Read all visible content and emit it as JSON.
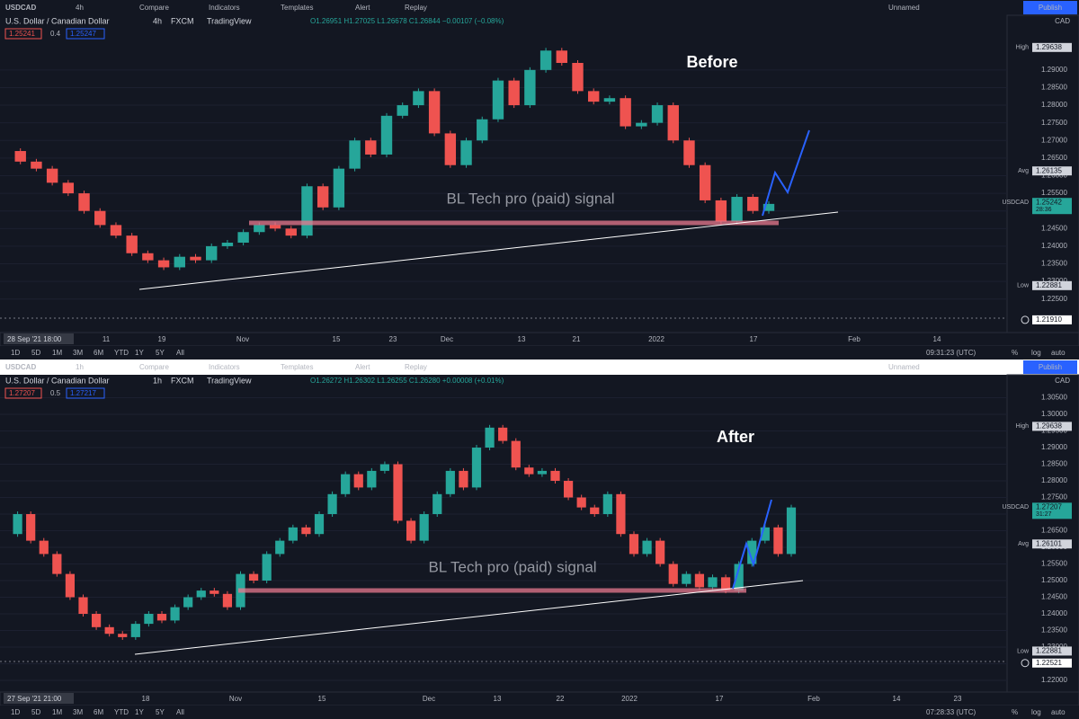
{
  "panels": [
    {
      "toolbar": {
        "symbol": "USDCAD",
        "interval": "4h",
        "buttons": [
          "Compare",
          "Indicators",
          "Templates",
          "Alert",
          "Replay"
        ],
        "layout": "Unnamed",
        "publish": "Publish"
      },
      "legend": {
        "title": "U.S. Dollar / Canadian Dollar",
        "interval": "4h",
        "broker": "FXCM",
        "source": "TradingView",
        "ohlc": "O1.26951 H1.27025 L1.26678 C1.26844 −0.00107 (−0.08%)",
        "bid": "1.25241",
        "spread": "0.4",
        "ask": "1.25247"
      },
      "heading": "Before",
      "signal": "BL Tech pro (paid) signal",
      "currency": "CAD",
      "ylim": [
        1.2155,
        1.3022
      ],
      "yticks": [
        {
          "value": 1.225,
          "label": "1.22500"
        },
        {
          "value": 1.23,
          "label": "1.23000"
        },
        {
          "value": 1.235,
          "label": "1.23500"
        },
        {
          "value": 1.24,
          "label": "1.24000"
        },
        {
          "value": 1.245,
          "label": "1.24500"
        },
        {
          "value": 1.25,
          "label": "1.25000"
        },
        {
          "value": 1.255,
          "label": "1.25500"
        },
        {
          "value": 1.26,
          "label": "1.26000"
        },
        {
          "value": 1.265,
          "label": "1.26500"
        },
        {
          "value": 1.27,
          "label": "1.27000"
        },
        {
          "value": 1.275,
          "label": "1.27500"
        },
        {
          "value": 1.28,
          "label": "1.28000"
        },
        {
          "value": 1.285,
          "label": "1.28500"
        },
        {
          "value": 1.29,
          "label": "1.29000"
        }
      ],
      "markers": [
        {
          "tag": "High",
          "value": 1.29638,
          "label": "1.29638",
          "color": "#d1d4dc"
        },
        {
          "tag": "Avg",
          "value": 1.26135,
          "label": "1.26135",
          "color": "#d1d4dc"
        },
        {
          "tag": "USDCAD",
          "value": 1.25242,
          "label": "1.25242",
          "countdown": "28:36",
          "color": "#26a69a"
        },
        {
          "tag": "Low",
          "value": 1.22881,
          "label": "1.22881",
          "color": "#d1d4dc"
        },
        {
          "value": 1.2191,
          "label": "1.21910",
          "color": "#ffffff"
        }
      ],
      "closes": [
        1.267,
        1.264,
        1.262,
        1.258,
        1.255,
        1.25,
        1.246,
        1.243,
        1.238,
        1.236,
        1.234,
        1.237,
        1.236,
        1.24,
        1.241,
        1.244,
        1.246,
        1.245,
        1.243,
        1.257,
        1.251,
        1.262,
        1.27,
        1.266,
        1.277,
        1.28,
        1.284,
        1.272,
        1.263,
        1.27,
        1.276,
        1.287,
        1.28,
        1.29,
        1.2955,
        1.292,
        1.284,
        1.281,
        1.282,
        1.274,
        1.275,
        1.28,
        1.27,
        1.263,
        1.253,
        1.247,
        1.254,
        1.25,
        1.252
      ],
      "start_time": "28 Sep '21 18:00",
      "time_labels": [
        "11",
        "19",
        "Nov",
        "15",
        "23",
        "Dec",
        "13",
        "21",
        "2022",
        "17",
        "Feb",
        "14"
      ],
      "ranges": [
        "1D",
        "5D",
        "1M",
        "3M",
        "6M",
        "YTD",
        "1Y",
        "5Y",
        "All"
      ],
      "clock": "09:31:23 (UTC)",
      "scale_opts": [
        "%",
        "log",
        "auto"
      ]
    },
    {
      "toolbar": {
        "symbol": "USDCAD",
        "interval": "1h",
        "buttons": [
          "Compare",
          "Indicators",
          "Templates",
          "Alert",
          "Replay"
        ],
        "layout": "Unnamed",
        "publish": "Publish"
      },
      "legend": {
        "title": "U.S. Dollar / Canadian Dollar",
        "interval": "1h",
        "broker": "FXCM",
        "source": "TradingView",
        "ohlc": "O1.26272 H1.26302 L1.26255 C1.26280 +0.00008 (+0.01%)",
        "bid": "1.27207",
        "spread": "0.5",
        "ask": "1.27217"
      },
      "heading": "After",
      "signal": "BL Tech pro (paid) signal",
      "currency": "CAD",
      "ylim": [
        1.21649,
        1.30838
      ],
      "yticks": [
        {
          "value": 1.22,
          "label": "1.22000"
        },
        {
          "value": 1.225,
          "label": "1.22500"
        },
        {
          "value": 1.23,
          "label": "1.23000"
        },
        {
          "value": 1.235,
          "label": "1.23500"
        },
        {
          "value": 1.24,
          "label": "1.24000"
        },
        {
          "value": 1.245,
          "label": "1.24500"
        },
        {
          "value": 1.25,
          "label": "1.25000"
        },
        {
          "value": 1.255,
          "label": "1.25500"
        },
        {
          "value": 1.26,
          "label": "1.26000"
        },
        {
          "value": 1.265,
          "label": "1.26500"
        },
        {
          "value": 1.27,
          "label": "1.27000"
        },
        {
          "value": 1.275,
          "label": "1.27500"
        },
        {
          "value": 1.28,
          "label": "1.28000"
        },
        {
          "value": 1.285,
          "label": "1.28500"
        },
        {
          "value": 1.29,
          "label": "1.29000"
        },
        {
          "value": 1.295,
          "label": "1.29500"
        },
        {
          "value": 1.3,
          "label": "1.30000"
        },
        {
          "value": 1.305,
          "label": "1.30500"
        }
      ],
      "markers": [
        {
          "tag": "High",
          "value": 1.29638,
          "label": "1.29638",
          "color": "#d1d4dc"
        },
        {
          "tag": "USDCAD",
          "value": 1.27207,
          "label": "1.27207",
          "countdown": "31:27",
          "color": "#26a69a"
        },
        {
          "tag": "Avg",
          "value": 1.26101,
          "label": "1.26101",
          "color": "#d1d4dc"
        },
        {
          "tag": "Low",
          "value": 1.22881,
          "label": "1.22881",
          "color": "#d1d4dc"
        },
        {
          "value": 1.22521,
          "label": "1.22521",
          "color": "#ffffff"
        }
      ],
      "closes": [
        1.264,
        1.27,
        1.262,
        1.258,
        1.252,
        1.245,
        1.24,
        1.236,
        1.234,
        1.233,
        1.237,
        1.24,
        1.238,
        1.242,
        1.245,
        1.247,
        1.246,
        1.242,
        1.252,
        1.25,
        1.258,
        1.262,
        1.266,
        1.264,
        1.27,
        1.276,
        1.282,
        1.278,
        1.283,
        1.285,
        1.268,
        1.262,
        1.27,
        1.276,
        1.283,
        1.278,
        1.29,
        1.296,
        1.292,
        1.284,
        1.282,
        1.283,
        1.28,
        1.275,
        1.272,
        1.27,
        1.276,
        1.264,
        1.258,
        1.262,
        1.255,
        1.249,
        1.252,
        1.248,
        1.251,
        1.247,
        1.255,
        1.262,
        1.266,
        1.258,
        1.272
      ],
      "start_time": "27 Sep '21 21:00",
      "time_labels": [
        "18",
        "Nov",
        "15",
        "Dec",
        "13",
        "22",
        "2022",
        "17",
        "Feb",
        "14",
        "23"
      ],
      "ranges": [
        "1D",
        "5D",
        "1M",
        "3M",
        "6M",
        "YTD",
        "1Y",
        "5Y",
        "All"
      ],
      "clock": "07:28:33 (UTC)",
      "scale_opts": [
        "%",
        "log",
        "auto"
      ]
    }
  ]
}
